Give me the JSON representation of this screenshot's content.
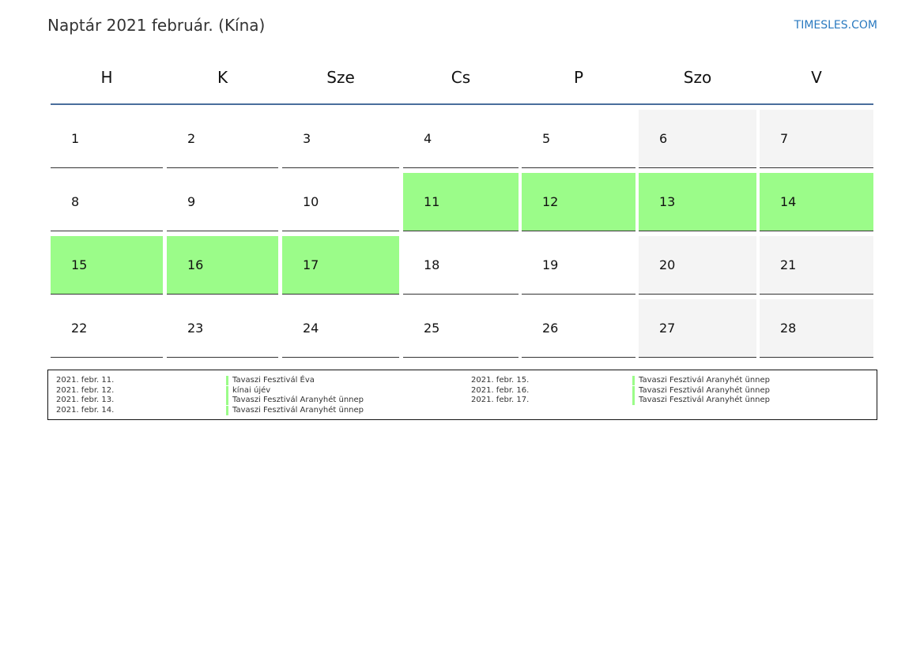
{
  "header": {
    "title": "Naptár 2021 február. (Kína)",
    "brand": "TIMESLES.COM"
  },
  "weekdays": [
    "H",
    "K",
    "Sze",
    "Cs",
    "P",
    "Szo",
    "V"
  ],
  "colors": {
    "holiday": "#9bfc89",
    "weekend": "#f4f4f4",
    "header_line": "#4a6e9c",
    "brand": "#2a7ac0"
  },
  "weeks": [
    [
      {
        "d": "1"
      },
      {
        "d": "2"
      },
      {
        "d": "3"
      },
      {
        "d": "4"
      },
      {
        "d": "5"
      },
      {
        "d": "6",
        "t": "we"
      },
      {
        "d": "7",
        "t": "we"
      }
    ],
    [
      {
        "d": "8"
      },
      {
        "d": "9"
      },
      {
        "d": "10"
      },
      {
        "d": "11",
        "t": "hol"
      },
      {
        "d": "12",
        "t": "hol"
      },
      {
        "d": "13",
        "t": "hol"
      },
      {
        "d": "14",
        "t": "hol"
      }
    ],
    [
      {
        "d": "15",
        "t": "hol"
      },
      {
        "d": "16",
        "t": "hol"
      },
      {
        "d": "17",
        "t": "hol"
      },
      {
        "d": "18"
      },
      {
        "d": "19"
      },
      {
        "d": "20",
        "t": "we"
      },
      {
        "d": "21",
        "t": "we"
      }
    ],
    [
      {
        "d": "22"
      },
      {
        "d": "23"
      },
      {
        "d": "24"
      },
      {
        "d": "25"
      },
      {
        "d": "26"
      },
      {
        "d": "27",
        "t": "we"
      },
      {
        "d": "28",
        "t": "we"
      }
    ]
  ],
  "holidays": [
    {
      "date": "2021. febr. 11.",
      "name": "Tavaszi Fesztivál Éva"
    },
    {
      "date": "2021. febr. 12.",
      "name": "kínai újév"
    },
    {
      "date": "2021. febr. 13.",
      "name": "Tavaszi Fesztivál Aranyhét ünnep"
    },
    {
      "date": "2021. febr. 14.",
      "name": "Tavaszi Fesztivál Aranyhét ünnep"
    },
    {
      "date": "2021. febr. 15.",
      "name": "Tavaszi Fesztivál Aranyhét ünnep"
    },
    {
      "date": "2021. febr. 16.",
      "name": "Tavaszi Fesztivál Aranyhét ünnep"
    },
    {
      "date": "2021. febr. 17.",
      "name": "Tavaszi Fesztivál Aranyhét ünnep"
    }
  ]
}
